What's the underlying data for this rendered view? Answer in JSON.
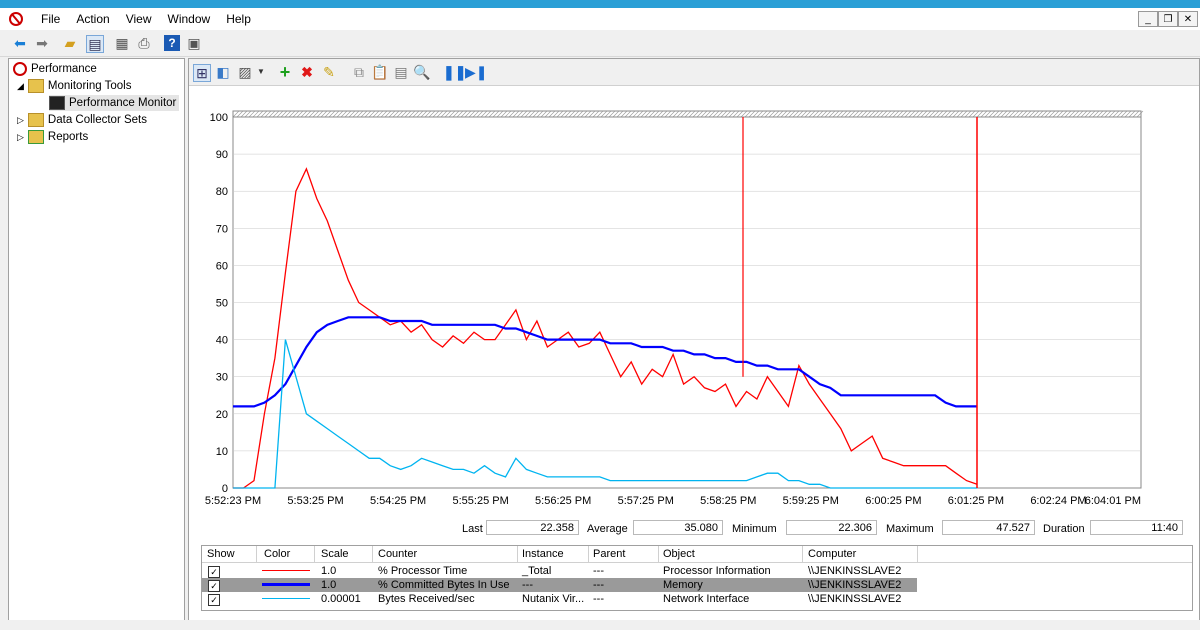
{
  "menu": [
    "File",
    "Action",
    "View",
    "Window",
    "Help"
  ],
  "tree": {
    "root": "Performance",
    "monitoring_tools": "Monitoring Tools",
    "performance_monitor": "Performance Monitor",
    "data_collector_sets": "Data Collector Sets",
    "reports": "Reports"
  },
  "colors": {
    "processor": "#ff0000",
    "memory": "#0000ff",
    "network": "#00b4f0",
    "grid": "#c8c8c8"
  },
  "chart_data": {
    "type": "line",
    "ylim": [
      0,
      100
    ],
    "yticks": [
      "100",
      "90",
      "80",
      "70",
      "60",
      "50",
      "40",
      "30",
      "20",
      "10",
      "0"
    ],
    "xticks": [
      "5:52:23 PM",
      "5:53:25 PM",
      "5:54:25 PM",
      "5:55:25 PM",
      "5:56:25 PM",
      "5:57:25 PM",
      "5:58:25 PM",
      "5:59:25 PM",
      "6:00:25 PM",
      "6:01:25 PM",
      "6:02:24 PM",
      "6:04:01 PM"
    ],
    "series": [
      {
        "name": "% Processor Time",
        "color": "#ff0000",
        "values": [
          0,
          0,
          2,
          20,
          35,
          58,
          80,
          86,
          78,
          72,
          64,
          56,
          50,
          48,
          46,
          44,
          45,
          42,
          44,
          40,
          38,
          41,
          39,
          42,
          40,
          40,
          44,
          48,
          40,
          45,
          38,
          40,
          42,
          38,
          39,
          42,
          36,
          30,
          34,
          28,
          32,
          30,
          36,
          28,
          30,
          27,
          26,
          28,
          22,
          26,
          24,
          30,
          26,
          22,
          33,
          28,
          24,
          20,
          16,
          10,
          12,
          14,
          8,
          7,
          6,
          6,
          6,
          6,
          6,
          4,
          2,
          1
        ]
      },
      {
        "name": "% Committed Bytes In Use",
        "color": "#0000ff",
        "values": [
          22,
          22,
          22,
          23,
          25,
          28,
          33,
          38,
          42,
          44,
          45,
          46,
          46,
          46,
          46,
          45,
          45,
          45,
          45,
          44,
          44,
          44,
          44,
          44,
          44,
          44,
          43,
          43,
          42,
          41,
          40,
          40,
          40,
          40,
          40,
          40,
          39,
          39,
          39,
          38,
          38,
          38,
          37,
          37,
          36,
          36,
          35,
          35,
          34,
          34,
          33,
          33,
          32,
          32,
          32,
          30,
          28,
          27,
          25,
          25,
          25,
          25,
          25,
          25,
          25,
          25,
          25,
          25,
          23,
          22,
          22,
          22
        ]
      },
      {
        "name": "Bytes Received/sec",
        "color": "#00b4f0",
        "values": [
          0,
          0,
          0,
          0,
          0,
          40,
          30,
          20,
          18,
          16,
          14,
          12,
          10,
          8,
          8,
          6,
          5,
          6,
          8,
          7,
          6,
          5,
          5,
          4,
          6,
          4,
          3,
          8,
          5,
          4,
          3,
          3,
          3,
          3,
          3,
          3,
          2,
          2,
          2,
          2,
          2,
          2,
          2,
          2,
          2,
          2,
          2,
          2,
          2,
          2,
          3,
          4,
          4,
          2,
          2,
          1,
          1,
          0,
          0,
          0,
          0,
          0,
          0,
          0,
          0,
          0,
          0,
          0,
          0,
          0,
          0,
          0
        ]
      }
    ]
  },
  "stats": {
    "last_label": "Last",
    "last": "22.358",
    "average_label": "Average",
    "average": "35.080",
    "minimum_label": "Minimum",
    "minimum": "22.306",
    "maximum_label": "Maximum",
    "maximum": "47.527",
    "duration_label": "Duration",
    "duration": "11:40"
  },
  "legend": {
    "headers": [
      "Show",
      "Color",
      "Scale",
      "Counter",
      "Instance",
      "Parent",
      "Object",
      "Computer"
    ],
    "rows": [
      {
        "show": "✓",
        "scale": "1.0",
        "counter": "% Processor Time",
        "instance": "_Total",
        "parent": "---",
        "object": "Processor Information",
        "computer": "\\\\JENKINSSLAVE2"
      },
      {
        "show": "✓",
        "scale": "1.0",
        "counter": "% Committed Bytes In Use",
        "instance": "---",
        "parent": "---",
        "object": "Memory",
        "computer": "\\\\JENKINSSLAVE2"
      },
      {
        "show": "✓",
        "scale": "0.00001",
        "counter": "Bytes Received/sec",
        "instance": "Nutanix Vir...",
        "parent": "---",
        "object": "Network Interface",
        "computer": "\\\\JENKINSSLAVE2"
      }
    ]
  }
}
